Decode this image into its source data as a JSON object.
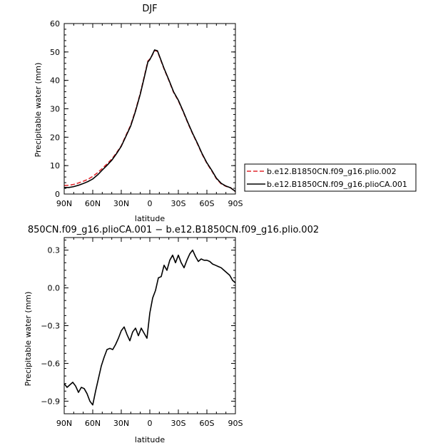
{
  "chart_data": [
    {
      "type": "line",
      "title": "DJF",
      "xlabel": "latitude",
      "ylabel": "Precipitable water (mm)",
      "ylim": [
        0,
        60
      ],
      "yticks": [
        0,
        10,
        20,
        30,
        40,
        50,
        60
      ],
      "xlim": [
        90,
        -90
      ],
      "xticks": [
        90,
        60,
        30,
        0,
        -30,
        -60,
        -90
      ],
      "xtick_labels": [
        "90N",
        "60N",
        "30N",
        "0",
        "30S",
        "60S",
        "90S"
      ],
      "x": [
        90,
        85,
        80,
        75,
        70,
        65,
        60,
        55,
        50,
        45,
        40,
        35,
        30,
        25,
        20,
        15,
        10,
        5,
        2,
        0,
        -2,
        -5,
        -8,
        -10,
        -15,
        -20,
        -25,
        -30,
        -35,
        -40,
        -45,
        -50,
        -55,
        -60,
        -65,
        -70,
        -75,
        -80,
        -85,
        -90
      ],
      "series": [
        {
          "name": "b.e12.B1850CN.f09_g16.plio.002",
          "color": "#e0282e",
          "dash": "dashed",
          "values": [
            3.0,
            3.1,
            3.4,
            3.9,
            4.5,
            5.2,
            6.2,
            7.5,
            9.0,
            10.6,
            12.3,
            14.5,
            17.0,
            20.7,
            24.3,
            29.5,
            35.5,
            42.5,
            46.8,
            47.5,
            48.5,
            50.5,
            50.2,
            48.5,
            44.0,
            40.0,
            35.8,
            32.8,
            29.0,
            25.0,
            21.2,
            17.7,
            14.0,
            10.8,
            8.2,
            5.4,
            3.6,
            2.7,
            2.2,
            0.8
          ]
        },
        {
          "name": "b.e12.B1850CN.f09_g16.plioCA.001",
          "color": "#000000",
          "dash": "solid",
          "values": [
            2.3,
            2.3,
            2.6,
            3.1,
            3.7,
            4.4,
            5.3,
            6.7,
            8.4,
            10.1,
            11.9,
            14.2,
            16.8,
            20.4,
            24.0,
            29.2,
            35.2,
            42.2,
            46.5,
            47.3,
            48.6,
            50.7,
            50.4,
            48.7,
            44.2,
            40.2,
            36.0,
            33.0,
            29.2,
            25.2,
            21.4,
            17.9,
            14.2,
            11.0,
            8.4,
            5.6,
            3.8,
            2.8,
            2.2,
            0.9
          ]
        }
      ],
      "legend": "right"
    },
    {
      "type": "line",
      "title": "850CN.f09_g16.plioCA.001 − b.e12.B1850CN.f09_g16.plio.002",
      "xlabel": "latitude",
      "ylabel": "Precipitable water (mm)",
      "ylim": [
        -1.0,
        0.4
      ],
      "yticks": [
        -0.9,
        -0.6,
        -0.3,
        0.0,
        0.3
      ],
      "ytick_labels": [
        "−0.9",
        "−0.6",
        "−0.3",
        "0.0",
        "0.3"
      ],
      "xlim": [
        90,
        -90
      ],
      "xticks": [
        90,
        60,
        30,
        0,
        -30,
        -60,
        -90
      ],
      "xtick_labels": [
        "90N",
        "60N",
        "30N",
        "0",
        "30S",
        "60S",
        "90S"
      ],
      "x": [
        90,
        87,
        84,
        81,
        78,
        75,
        72,
        69,
        66,
        63,
        60,
        57,
        54,
        51,
        48,
        45,
        42,
        39,
        36,
        33,
        30,
        27,
        24,
        21,
        18,
        15,
        12,
        9,
        6,
        3,
        0,
        -3,
        -6,
        -9,
        -12,
        -15,
        -18,
        -21,
        -24,
        -27,
        -30,
        -33,
        -36,
        -39,
        -42,
        -45,
        -48,
        -51,
        -54,
        -57,
        -60,
        -63,
        -66,
        -69,
        -72,
        -75,
        -78,
        -81,
        -84,
        -87,
        -90
      ],
      "series": [
        {
          "color": "#000000",
          "values": [
            -0.76,
            -0.79,
            -0.77,
            -0.75,
            -0.78,
            -0.83,
            -0.79,
            -0.8,
            -0.84,
            -0.9,
            -0.93,
            -0.82,
            -0.72,
            -0.62,
            -0.55,
            -0.49,
            -0.48,
            -0.49,
            -0.45,
            -0.4,
            -0.34,
            -0.31,
            -0.37,
            -0.42,
            -0.35,
            -0.32,
            -0.38,
            -0.32,
            -0.36,
            -0.4,
            -0.2,
            -0.08,
            -0.02,
            0.08,
            0.09,
            0.18,
            0.14,
            0.22,
            0.26,
            0.2,
            0.26,
            0.2,
            0.16,
            0.22,
            0.27,
            0.3,
            0.25,
            0.21,
            0.23,
            0.22,
            0.22,
            0.21,
            0.19,
            0.18,
            0.17,
            0.16,
            0.14,
            0.12,
            0.1,
            0.06,
            0.04
          ]
        }
      ]
    }
  ]
}
